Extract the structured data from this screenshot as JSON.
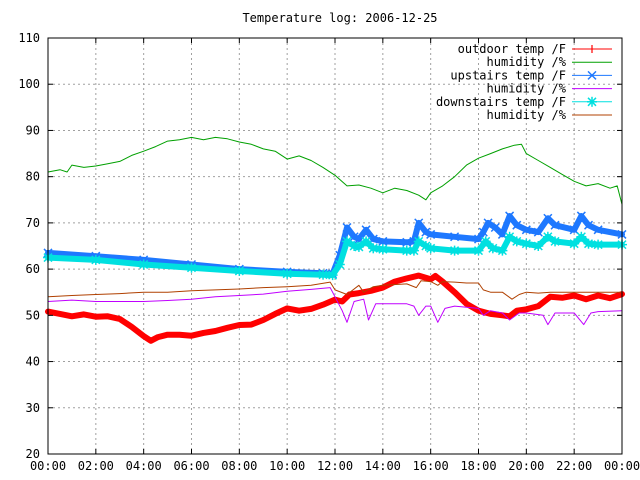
{
  "chart_data": {
    "type": "line",
    "title": "Temperature log: 2006-12-25",
    "xlabel": "",
    "ylabel": "",
    "xlim": [
      0,
      24
    ],
    "ylim": [
      20,
      110
    ],
    "grid": true,
    "legend_position": "top-right",
    "x_ticks": [
      {
        "v": 0,
        "label": "00:00"
      },
      {
        "v": 2,
        "label": "02:00"
      },
      {
        "v": 4,
        "label": "04:00"
      },
      {
        "v": 6,
        "label": "06:00"
      },
      {
        "v": 8,
        "label": "08:00"
      },
      {
        "v": 10,
        "label": "10:00"
      },
      {
        "v": 12,
        "label": "12:00"
      },
      {
        "v": 14,
        "label": "14:00"
      },
      {
        "v": 16,
        "label": "16:00"
      },
      {
        "v": 18,
        "label": "18:00"
      },
      {
        "v": 20,
        "label": "20:00"
      },
      {
        "v": 22,
        "label": "22:00"
      },
      {
        "v": 24,
        "label": "00:00"
      }
    ],
    "y_ticks": [
      {
        "v": 20,
        "label": "20"
      },
      {
        "v": 30,
        "label": "30"
      },
      {
        "v": 40,
        "label": "40"
      },
      {
        "v": 50,
        "label": "50"
      },
      {
        "v": 60,
        "label": "60"
      },
      {
        "v": 70,
        "label": "70"
      },
      {
        "v": 80,
        "label": "80"
      },
      {
        "v": 90,
        "label": "90"
      },
      {
        "v": 100,
        "label": "100"
      },
      {
        "v": 110,
        "label": "110"
      }
    ],
    "series": [
      {
        "name": "outdoor temp /F",
        "color": "#ff0000",
        "marker": "plus",
        "line_width": 6,
        "points": [
          [
            0,
            50.8
          ],
          [
            0.5,
            50.3
          ],
          [
            1,
            49.8
          ],
          [
            1.5,
            50.2
          ],
          [
            2,
            49.7
          ],
          [
            2.5,
            49.8
          ],
          [
            3,
            49.2
          ],
          [
            3.5,
            47.5
          ],
          [
            4,
            45.5
          ],
          [
            4.3,
            44.5
          ],
          [
            4.6,
            45.3
          ],
          [
            5,
            45.8
          ],
          [
            5.5,
            45.8
          ],
          [
            6,
            45.6
          ],
          [
            6.5,
            46.2
          ],
          [
            7,
            46.6
          ],
          [
            7.5,
            47.3
          ],
          [
            8,
            47.9
          ],
          [
            8.5,
            48.0
          ],
          [
            9,
            49.0
          ],
          [
            9.5,
            50.3
          ],
          [
            10,
            51.5
          ],
          [
            10.5,
            51.0
          ],
          [
            11,
            51.4
          ],
          [
            11.5,
            52.3
          ],
          [
            12,
            53.4
          ],
          [
            12.3,
            53.0
          ],
          [
            12.6,
            54.5
          ],
          [
            13,
            54.8
          ],
          [
            13.5,
            55.3
          ],
          [
            14,
            56.0
          ],
          [
            14.5,
            57.3
          ],
          [
            15,
            58.0
          ],
          [
            15.5,
            58.6
          ],
          [
            16,
            57.8
          ],
          [
            16.2,
            58.5
          ],
          [
            16.5,
            57.3
          ],
          [
            17,
            55.0
          ],
          [
            17.5,
            52.5
          ],
          [
            18,
            51.0
          ],
          [
            18.5,
            50.3
          ],
          [
            19,
            50.0
          ],
          [
            19.3,
            49.8
          ],
          [
            19.6,
            51.0
          ],
          [
            20,
            51.3
          ],
          [
            20.5,
            52.0
          ],
          [
            21,
            54.0
          ],
          [
            21.5,
            53.8
          ],
          [
            22,
            54.3
          ],
          [
            22.5,
            53.5
          ],
          [
            23,
            54.3
          ],
          [
            23.5,
            53.7
          ],
          [
            24,
            54.6
          ]
        ]
      },
      {
        "name": "humidity /%",
        "color": "#00a000",
        "marker": "none",
        "line_width": 1,
        "points": [
          [
            0,
            81.0
          ],
          [
            0.5,
            81.5
          ],
          [
            0.8,
            81.0
          ],
          [
            1,
            82.5
          ],
          [
            1.5,
            82.0
          ],
          [
            2,
            82.3
          ],
          [
            2.5,
            82.8
          ],
          [
            3,
            83.3
          ],
          [
            3.5,
            84.6
          ],
          [
            4,
            85.5
          ],
          [
            4.5,
            86.5
          ],
          [
            5,
            87.7
          ],
          [
            5.5,
            88.0
          ],
          [
            6,
            88.5
          ],
          [
            6.5,
            88.0
          ],
          [
            7,
            88.5
          ],
          [
            7.5,
            88.2
          ],
          [
            8,
            87.5
          ],
          [
            8.5,
            87.0
          ],
          [
            9,
            86.0
          ],
          [
            9.5,
            85.5
          ],
          [
            10,
            83.8
          ],
          [
            10.5,
            84.5
          ],
          [
            11,
            83.5
          ],
          [
            11.5,
            82.0
          ],
          [
            12,
            80.3
          ],
          [
            12.5,
            78.0
          ],
          [
            13,
            78.2
          ],
          [
            13.5,
            77.5
          ],
          [
            14,
            76.5
          ],
          [
            14.5,
            77.5
          ],
          [
            15,
            77.0
          ],
          [
            15.5,
            76.0
          ],
          [
            15.8,
            75.0
          ],
          [
            16,
            76.5
          ],
          [
            16.5,
            78.0
          ],
          [
            17,
            80.0
          ],
          [
            17.5,
            82.5
          ],
          [
            18,
            84.0
          ],
          [
            18.5,
            85.0
          ],
          [
            19,
            86.0
          ],
          [
            19.5,
            86.8
          ],
          [
            19.8,
            87.0
          ],
          [
            20,
            85.0
          ],
          [
            20.5,
            83.5
          ],
          [
            21,
            82.0
          ],
          [
            21.5,
            80.5
          ],
          [
            22,
            79.0
          ],
          [
            22.5,
            78.0
          ],
          [
            23,
            78.5
          ],
          [
            23.5,
            77.5
          ],
          [
            23.8,
            78.0
          ],
          [
            24,
            74.0
          ]
        ]
      },
      {
        "name": "upstairs temp /F",
        "color": "#1e78ff",
        "marker": "cross",
        "line_width": 6,
        "points": [
          [
            0,
            63.5
          ],
          [
            2,
            62.8
          ],
          [
            4,
            62.0
          ],
          [
            6,
            61.0
          ],
          [
            8,
            60.0
          ],
          [
            10,
            59.4
          ],
          [
            11.5,
            59.1
          ],
          [
            11.9,
            59.0
          ],
          [
            12.2,
            63.0
          ],
          [
            12.5,
            69.0
          ],
          [
            12.8,
            67.0
          ],
          [
            13,
            66.5
          ],
          [
            13.3,
            68.5
          ],
          [
            13.6,
            66.5
          ],
          [
            14,
            66.0
          ],
          [
            15,
            65.8
          ],
          [
            15.3,
            66.0
          ],
          [
            15.5,
            70.0
          ],
          [
            15.8,
            68.0
          ],
          [
            16,
            67.5
          ],
          [
            17,
            67.0
          ],
          [
            18,
            66.5
          ],
          [
            18.2,
            68.0
          ],
          [
            18.4,
            70.0
          ],
          [
            18.7,
            69.0
          ],
          [
            19,
            67.5
          ],
          [
            19.3,
            71.5
          ],
          [
            19.6,
            69.5
          ],
          [
            20,
            68.5
          ],
          [
            20.5,
            68.0
          ],
          [
            20.9,
            71.0
          ],
          [
            21.2,
            69.5
          ],
          [
            22,
            68.5
          ],
          [
            22.3,
            71.5
          ],
          [
            22.6,
            69.5
          ],
          [
            23,
            68.5
          ],
          [
            24,
            67.5
          ]
        ]
      },
      {
        "name": "humidity /%",
        "color": "#c000ff",
        "marker": "none",
        "line_width": 1,
        "points": [
          [
            0,
            53.0
          ],
          [
            1,
            53.3
          ],
          [
            2,
            53.0
          ],
          [
            3,
            53.0
          ],
          [
            4,
            53.0
          ],
          [
            5,
            53.2
          ],
          [
            6,
            53.5
          ],
          [
            7,
            54.0
          ],
          [
            8,
            54.3
          ],
          [
            9,
            54.6
          ],
          [
            10,
            55.2
          ],
          [
            11,
            55.6
          ],
          [
            11.8,
            56.0
          ],
          [
            12,
            54.0
          ],
          [
            12.3,
            51.0
          ],
          [
            12.5,
            48.5
          ],
          [
            12.8,
            53.0
          ],
          [
            13.2,
            53.5
          ],
          [
            13.4,
            49.0
          ],
          [
            13.7,
            52.5
          ],
          [
            14,
            52.5
          ],
          [
            15,
            52.5
          ],
          [
            15.3,
            52.0
          ],
          [
            15.5,
            50.0
          ],
          [
            15.8,
            52.0
          ],
          [
            16,
            52.0
          ],
          [
            16.3,
            48.5
          ],
          [
            16.6,
            51.5
          ],
          [
            17,
            52.0
          ],
          [
            18,
            51.5
          ],
          [
            18.2,
            50.0
          ],
          [
            18.5,
            51.0
          ],
          [
            19,
            50.5
          ],
          [
            19.3,
            49.0
          ],
          [
            19.7,
            50.5
          ],
          [
            20,
            50.5
          ],
          [
            20.7,
            50.0
          ],
          [
            20.9,
            48.0
          ],
          [
            21.2,
            50.5
          ],
          [
            22,
            50.5
          ],
          [
            22.4,
            48.0
          ],
          [
            22.7,
            50.5
          ],
          [
            23,
            50.8
          ],
          [
            24,
            51.0
          ]
        ]
      },
      {
        "name": "downstairs temp /F",
        "color": "#00e0e0",
        "marker": "star",
        "line_width": 6,
        "points": [
          [
            0,
            62.5
          ],
          [
            2,
            62.0
          ],
          [
            4,
            61.0
          ],
          [
            6,
            60.3
          ],
          [
            8,
            59.6
          ],
          [
            10,
            59.0
          ],
          [
            11.5,
            58.8
          ],
          [
            11.9,
            58.7
          ],
          [
            12.2,
            61.0
          ],
          [
            12.5,
            66.0
          ],
          [
            12.8,
            65.0
          ],
          [
            13,
            64.8
          ],
          [
            13.3,
            66.0
          ],
          [
            13.6,
            64.5
          ],
          [
            14,
            64.3
          ],
          [
            15,
            64.0
          ],
          [
            15.3,
            64.0
          ],
          [
            15.5,
            66.0
          ],
          [
            15.8,
            65.0
          ],
          [
            16,
            64.5
          ],
          [
            17,
            64.0
          ],
          [
            18,
            64.0
          ],
          [
            18.3,
            66.0
          ],
          [
            18.6,
            64.5
          ],
          [
            19,
            64.0
          ],
          [
            19.3,
            67.0
          ],
          [
            19.6,
            66.0
          ],
          [
            20,
            65.5
          ],
          [
            20.5,
            65.0
          ],
          [
            20.9,
            67.0
          ],
          [
            21.2,
            66.0
          ],
          [
            22,
            65.5
          ],
          [
            22.3,
            67.0
          ],
          [
            22.6,
            65.5
          ],
          [
            23,
            65.3
          ],
          [
            24,
            65.3
          ]
        ]
      },
      {
        "name": "humidity /%",
        "color": "#b04000",
        "marker": "none",
        "line_width": 1,
        "points": [
          [
            0,
            54.0
          ],
          [
            1,
            54.3
          ],
          [
            2,
            54.5
          ],
          [
            3,
            54.7
          ],
          [
            4,
            55.0
          ],
          [
            5,
            55.0
          ],
          [
            6,
            55.3
          ],
          [
            7,
            55.5
          ],
          [
            8,
            55.7
          ],
          [
            9,
            56.0
          ],
          [
            10,
            56.2
          ],
          [
            11,
            56.5
          ],
          [
            11.8,
            57.2
          ],
          [
            12,
            55.5
          ],
          [
            12.5,
            54.5
          ],
          [
            13,
            56.5
          ],
          [
            13.2,
            55.0
          ],
          [
            13.6,
            56.2
          ],
          [
            14,
            56.5
          ],
          [
            15,
            56.8
          ],
          [
            15.4,
            56.0
          ],
          [
            15.6,
            57.5
          ],
          [
            16,
            57.3
          ],
          [
            16.3,
            56.5
          ],
          [
            16.5,
            57.3
          ],
          [
            17,
            57.2
          ],
          [
            17.5,
            57.0
          ],
          [
            18,
            57.0
          ],
          [
            18.2,
            55.5
          ],
          [
            18.5,
            55.0
          ],
          [
            19,
            55.0
          ],
          [
            19.4,
            53.5
          ],
          [
            19.7,
            54.5
          ],
          [
            20,
            55.0
          ],
          [
            20.5,
            54.8
          ],
          [
            21,
            55.0
          ],
          [
            22,
            55.0
          ],
          [
            23,
            55.0
          ],
          [
            24,
            55.0
          ]
        ]
      }
    ]
  }
}
